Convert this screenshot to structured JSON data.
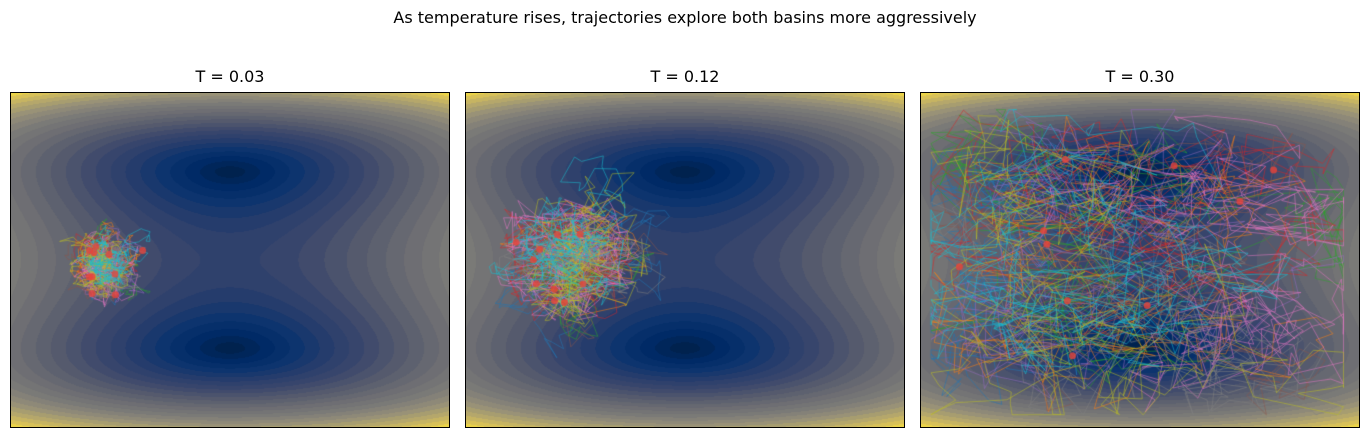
{
  "suptitle": "As temperature rises, trajectories explore both basins more aggressively",
  "chart_data": {
    "type": "contour",
    "title": "As temperature rises, trajectories explore both basins more aggressively",
    "colormap": "cividis",
    "potential": "double-well: V(x,y) = (y^2 - 1)^2 + c*x^2 (minima at top and bottom, saddle at center)",
    "axes_visible": false,
    "grid": false,
    "legend": "none",
    "xlim": [
      -2.0,
      2.0
    ],
    "ylim": [
      -1.9,
      1.9
    ],
    "contour_levels": 25,
    "panels": [
      {
        "title": "T = 0.03",
        "temperature": 0.03,
        "start": [
          -1.3,
          0.0
        ],
        "spread_description": "tight cluster around starting point on left",
        "cluster_center": [
          -1.3,
          -0.05
        ],
        "cluster_radius": 0.35,
        "n_trajectories": 10
      },
      {
        "title": "T = 0.12",
        "temperature": 0.12,
        "start": [
          -1.3,
          0.0
        ],
        "spread_description": "broader cluster on left, not crossing into basins",
        "cluster_center": [
          -1.2,
          0.0
        ],
        "cluster_radius": 0.75,
        "n_trajectories": 10
      },
      {
        "title": "T = 0.30",
        "temperature": 0.3,
        "start": [
          -1.3,
          0.0
        ],
        "spread_description": "wide exploration reaching both basins and far right side",
        "cluster_center": [
          -0.9,
          0.0
        ],
        "cluster_radius": 1.6,
        "n_trajectories": 10
      }
    ],
    "trajectory_colors": [
      "#1f77b4",
      "#ff7f0e",
      "#2ca02c",
      "#d62728",
      "#9467bd",
      "#8c564b",
      "#e377c2",
      "#7f7f7f",
      "#bcbd22",
      "#17becf"
    ],
    "endpoint_marker_color": "#e8433a"
  }
}
